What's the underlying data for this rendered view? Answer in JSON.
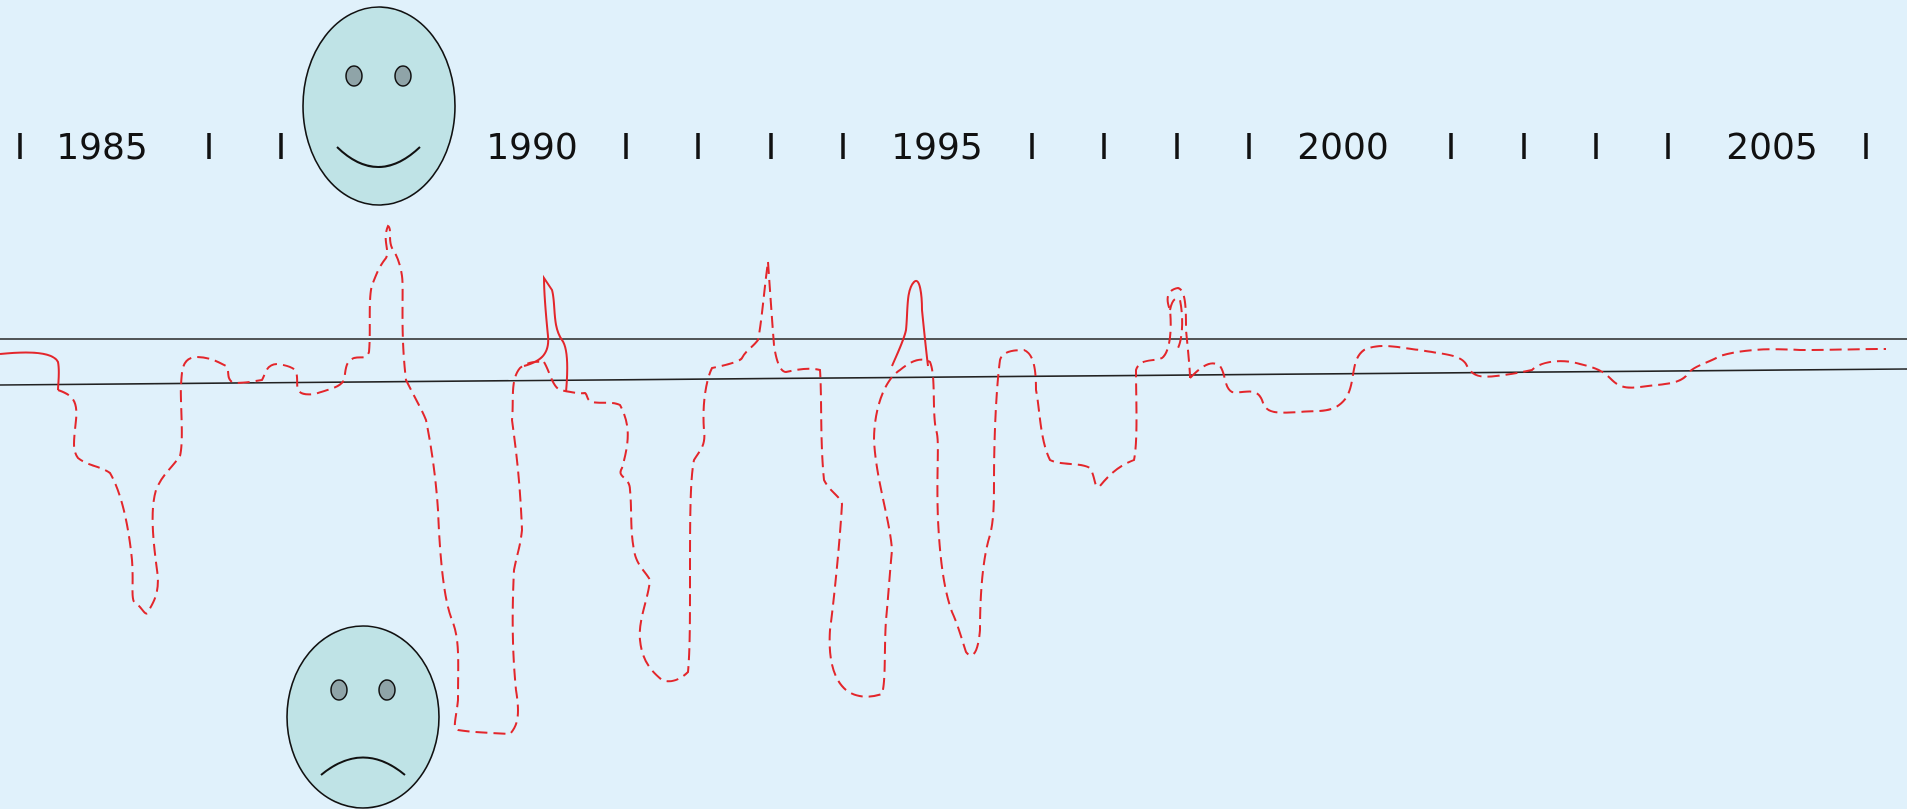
{
  "timeline": {
    "year_labels": [
      "1985",
      "1990",
      "1995",
      "2000",
      "2005"
    ]
  },
  "faces": [
    {
      "name": "happy-face",
      "mood": "happy"
    },
    {
      "name": "sad-face",
      "mood": "sad"
    }
  ],
  "colors": {
    "background": "#e0f1fb",
    "trace": "#e3262b",
    "face_fill": "#bfe3e6",
    "line": "#222222"
  }
}
